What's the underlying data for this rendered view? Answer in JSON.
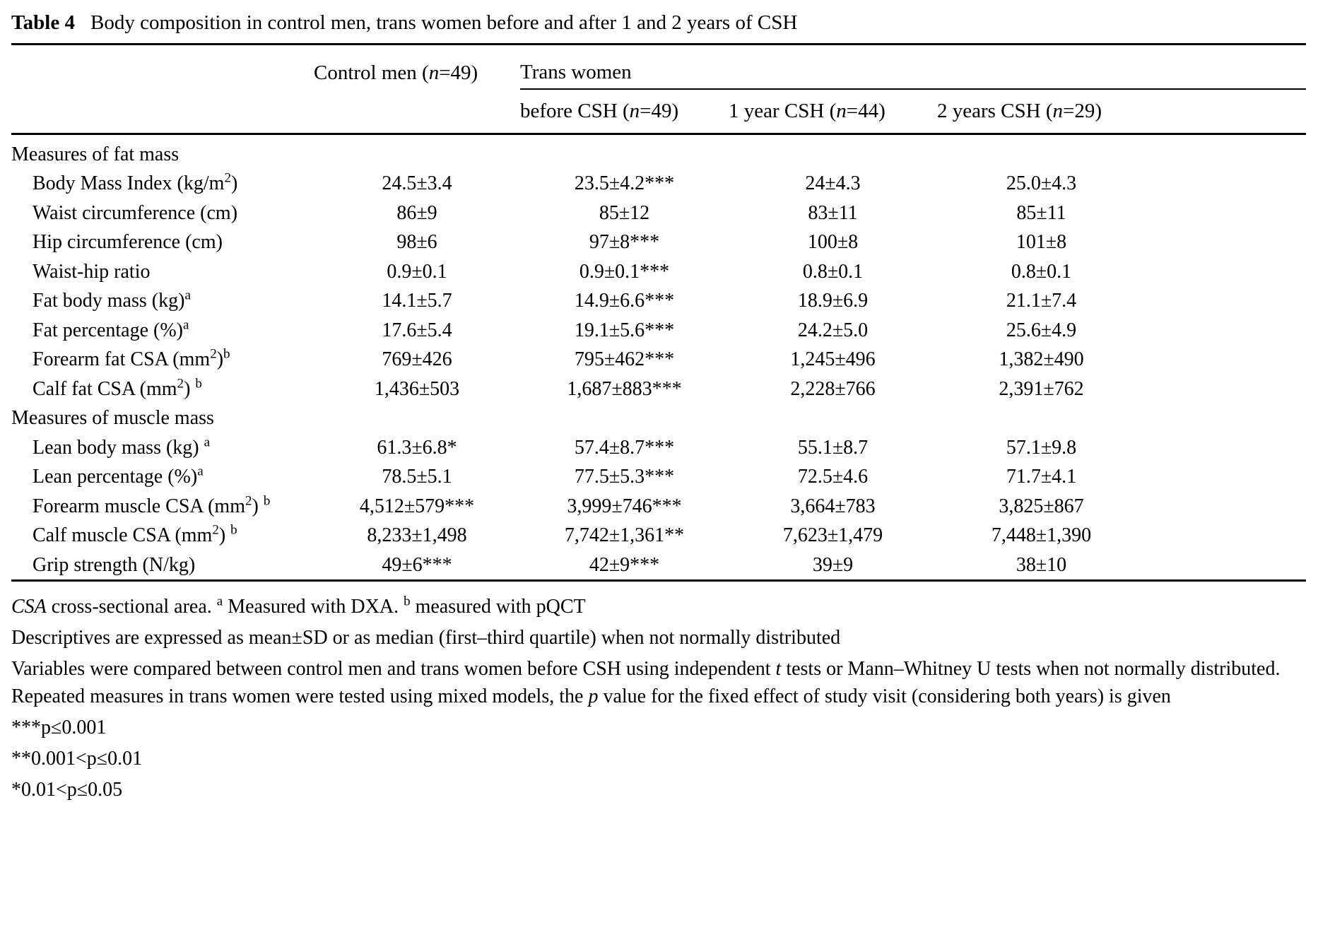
{
  "caption": {
    "label": "Table 4",
    "title": "Body composition in control men, trans women before and after 1 and 2 years of CSH"
  },
  "columns": {
    "control": "Control men (<i>n</i>=49)",
    "group": "Trans women",
    "before": "before CSH (<i>n</i>=49)",
    "year1": "1 year CSH (<i>n</i>=44)",
    "year2": "2 years CSH (<i>n</i>=29)"
  },
  "rows": [
    {
      "type": "section",
      "label": "Measures of fat mass"
    },
    {
      "type": "data",
      "label": "Body Mass Index (kg/m<sup>2</sup>)",
      "values": [
        "24.5±3.4",
        "23.5±4.2***",
        "24±4.3",
        "25.0±4.3"
      ]
    },
    {
      "type": "data",
      "label": "Waist circumference (cm)",
      "values": [
        "86±9",
        "85±12",
        "83±11",
        "85±11"
      ]
    },
    {
      "type": "data",
      "label": "Hip circumference (cm)",
      "values": [
        "98±6",
        "97±8***",
        "100±8",
        "101±8"
      ]
    },
    {
      "type": "data",
      "label": "Waist-hip ratio",
      "values": [
        "0.9±0.1",
        "0.9±0.1***",
        "0.8±0.1",
        "0.8±0.1"
      ]
    },
    {
      "type": "data",
      "label": "Fat body mass (kg)<sup>a</sup>",
      "values": [
        "14.1±5.7",
        "14.9±6.6***",
        "18.9±6.9",
        "21.1±7.4"
      ]
    },
    {
      "type": "data",
      "label": "Fat percentage (%)<sup>a</sup>",
      "values": [
        "17.6±5.4",
        "19.1±5.6***",
        "24.2±5.0",
        "25.6±4.9"
      ]
    },
    {
      "type": "data",
      "label": "Forearm fat CSA (mm<sup>2</sup>)<sup>b</sup>",
      "values": [
        "769±426",
        "795±462***",
        "1,245±496",
        "1,382±490"
      ]
    },
    {
      "type": "data",
      "label": "Calf fat CSA (mm<sup>2</sup>) <sup>b</sup>",
      "values": [
        "1,436±503",
        "1,687±883***",
        "2,228±766",
        "2,391±762"
      ]
    },
    {
      "type": "section",
      "label": "Measures of muscle mass"
    },
    {
      "type": "data",
      "label": "Lean body mass (kg) <sup>a</sup>",
      "values": [
        "61.3±6.8*",
        "57.4±8.7***",
        "55.1±8.7",
        "57.1±9.8"
      ]
    },
    {
      "type": "data",
      "label": "Lean percentage (%)<sup>a</sup>",
      "values": [
        "78.5±5.1",
        "77.5±5.3***",
        "72.5±4.6",
        "71.7±4.1"
      ]
    },
    {
      "type": "data",
      "label": "Forearm muscle CSA (mm<sup>2</sup>) <sup>b</sup>",
      "values": [
        "4,512±579***",
        "3,999±746***",
        "3,664±783",
        "3,825±867"
      ]
    },
    {
      "type": "data",
      "label": "Calf muscle CSA (mm<sup>2</sup>) <sup>b</sup>",
      "values": [
        "8,233±1,498",
        "7,742±1,361**",
        "7,623±1,479",
        "7,448±1,390"
      ]
    },
    {
      "type": "data",
      "label": "Grip strength (N/kg)",
      "values": [
        "49±6***",
        "42±9***",
        "39±9",
        "38±10"
      ]
    }
  ],
  "footnotes": [
    "<i>CSA</i> cross-sectional area. <sup>a</sup> Measured with DXA. <sup>b</sup> measured with pQCT",
    "Descriptives are expressed as mean±SD or as median (first–third quartile) when not normally distributed",
    "Variables were compared between control men and trans women before CSH using independent <i>t</i> tests or Mann–Whitney U tests when not normally distributed. Repeated measures in trans women were tested using mixed models, the <i>p</i> value for the fixed effect of study visit (considering both years) is given",
    "***p≤0.001",
    "**0.001&lt;p≤0.01",
    "*0.01&lt;p≤0.05"
  ]
}
